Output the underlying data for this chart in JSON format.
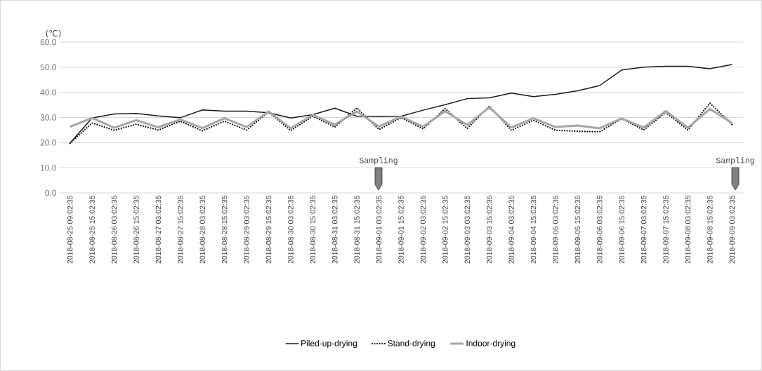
{
  "chart_data": {
    "type": "line",
    "ylabel": "(℃)",
    "categories": [
      "2018-08-25 09:02:35",
      "2018-08-25 15:02:35",
      "2018-08-26 03:02:35",
      "2018-08-26 15:02:35",
      "2018-08-27 03:02:35",
      "2018-08-27 15:02:35",
      "2018-08-28 03:02:35",
      "2018-08-28 15:02:35",
      "2018-08-29 03:02:35",
      "2018-08-29 15:02:35",
      "2018-08-30 03:02:35",
      "2018-08-30 15:02:35",
      "2018-08-31 03:02:35",
      "2018-08-31 15:02:35",
      "2018-09-01 03:02:35",
      "2018-09-01 15:02:35",
      "2018-09-02 03:02:35",
      "2018-09-02 15:02:35",
      "2018-09-03 03:02:35",
      "2018-09-03 15:02:35",
      "2018-09-04 03:02:35",
      "2018-09-04 15:02:35",
      "2018-09-05 03:02:35",
      "2018-09-05 15:02:35",
      "2018-09-06 03:02:35",
      "2018-09-06 15:02:35",
      "2018-09-07 03:02:35",
      "2018-09-07 15:02:35",
      "2018-09-08 03:02:35",
      "2018-09-08 15:02:35",
      "2018-09-09 03:02:35"
    ],
    "series": [
      {
        "name": "Piled-up-drying",
        "color": "#1a1a1a",
        "line_style": "solid",
        "values": [
          19.8,
          29.8,
          31.4,
          31.6,
          30.6,
          29.9,
          33.0,
          32.5,
          32.5,
          31.9,
          29.8,
          31.1,
          33.7,
          30.5,
          30.4,
          30.5,
          32.9,
          35.1,
          37.5,
          37.8,
          39.7,
          38.3,
          39.2,
          40.6,
          42.7,
          48.9,
          50.0,
          50.4,
          50.4,
          49.4,
          51.1
        ]
      },
      {
        "name": "Stand-drying",
        "color": "#000000",
        "line_style": "dotted",
        "values": [
          19.7,
          27.8,
          24.9,
          27.3,
          25.0,
          28.5,
          24.7,
          28.5,
          25.0,
          32.2,
          24.8,
          30.5,
          26.2,
          33.8,
          25.2,
          29.9,
          25.5,
          33.5,
          25.6,
          34.5,
          24.9,
          28.9,
          24.9,
          24.5,
          24.3,
          29.5,
          25.0,
          32.0,
          25.0,
          35.7,
          27.2
        ]
      },
      {
        "name": "Indoor-drying",
        "color": "#a6a6a6",
        "line_style": "solid",
        "values": [
          26.3,
          29.8,
          25.9,
          28.9,
          26.1,
          29.2,
          25.8,
          29.7,
          26.2,
          32.4,
          25.7,
          31.0,
          27.2,
          32.4,
          26.4,
          30.4,
          26.3,
          32.5,
          27.0,
          34.0,
          26.0,
          29.7,
          26.2,
          26.8,
          25.7,
          29.6,
          26.0,
          32.6,
          25.9,
          33.4,
          27.8
        ]
      }
    ],
    "ylim": [
      0,
      60
    ],
    "yticks": [
      {
        "value": 0,
        "label": "0.0"
      },
      {
        "value": 10,
        "label": "10.0"
      },
      {
        "value": 20,
        "label": "20.0"
      },
      {
        "value": 30,
        "label": "30.0"
      },
      {
        "value": 40,
        "label": "40.0"
      },
      {
        "value": 50,
        "label": "50.0"
      },
      {
        "value": 60,
        "label": "60.0"
      }
    ],
    "annotations": [
      "Sampling",
      "Sampling"
    ],
    "grid": "y",
    "legend": "bottom",
    "marker": "none"
  }
}
